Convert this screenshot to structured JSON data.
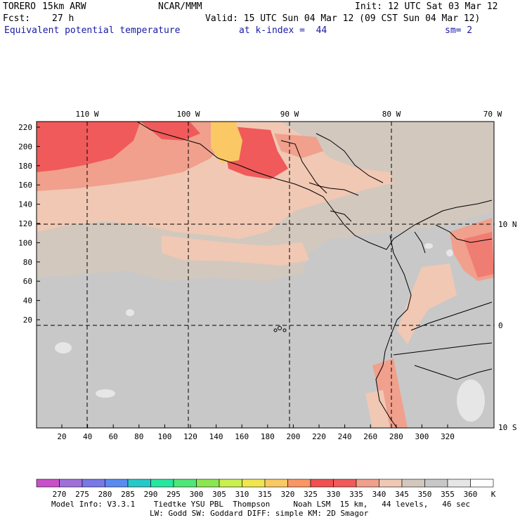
{
  "header": {
    "model": "TORERO",
    "resolution": "15km ARW",
    "center": "NCAR/MMM",
    "init": "Init: 12 UTC Sat 03 Mar 12",
    "fcst_label": "Fcst:",
    "fcst_value": "27 h",
    "valid": "Valid: 15 UTC Sun 04 Mar 12 (09 CST Sun 04 Mar 12)",
    "field": "Equivalent potential temperature",
    "level": "at k-index =  44",
    "smoothing": "sm= 2"
  },
  "map": {
    "lon_labels": [
      "110 W",
      "100 W",
      "90 W",
      "80 W",
      "70 W"
    ],
    "lat_labels": [
      "10 N",
      "0",
      "10 S"
    ],
    "y_grid_ticks": [
      "220",
      "200",
      "180",
      "160",
      "140",
      "120",
      "100",
      "80",
      "60",
      "40",
      "20"
    ],
    "x_grid_ticks": [
      "20",
      "40",
      "60",
      "80",
      "100",
      "120",
      "140",
      "160",
      "180",
      "200",
      "220",
      "240",
      "260",
      "280",
      "300",
      "320"
    ]
  },
  "colorbar": {
    "unit": "K",
    "levels": [
      "270",
      "275",
      "280",
      "285",
      "290",
      "295",
      "300",
      "305",
      "310",
      "315",
      "320",
      "325",
      "330",
      "335",
      "340",
      "345",
      "350",
      "355",
      "360"
    ],
    "colors": [
      "#c850c8",
      "#a070d8",
      "#7878e6",
      "#5a8cf0",
      "#28c8c8",
      "#28e6a0",
      "#50e678",
      "#8ce650",
      "#c8f050",
      "#f0e650",
      "#fac864",
      "#fa9664",
      "#f05050",
      "#f05a5a",
      "#f0a08c",
      "#f0c8b4",
      "#d2c8be",
      "#c8c8c8",
      "#e6e6e6",
      "#ffffff"
    ]
  },
  "footer": {
    "line1": "Model Info: V3.3.1    Tiedtke YSU PBL  Thompson     Noah LSM  15 km,   44 levels,   46 sec",
    "line2": "LW: Godd SW: Goddard DIFF: simple KM: 2D Smagor"
  }
}
